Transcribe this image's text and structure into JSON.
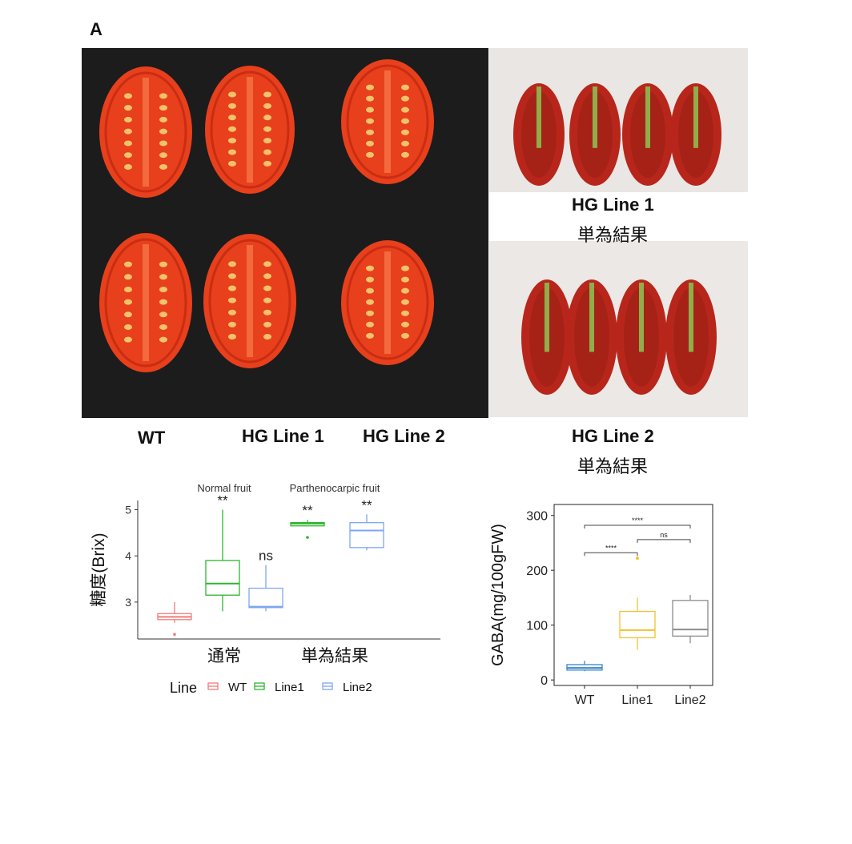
{
  "panel_letter": "A",
  "photo_labels": {
    "wt": "WT",
    "hg_line1": "HG Line 1",
    "hg_line2": "HG Line 2",
    "right_top_title": "HG Line 1",
    "right_top_sub": "単為結果",
    "right_bottom_title": "HG Line 2",
    "right_bottom_sub": "単為結果"
  },
  "colors": {
    "tomato": "#e8401c",
    "tomato_dark": "#c92d12",
    "seed": "#f2c36b",
    "wt": "#f07d79",
    "line1": "#2fb52f",
    "line2": "#7ea7f0",
    "gaba_wt": "#3a86c8",
    "gaba_line1": "#f1c232",
    "gaba_line2": "#8c8c8c"
  },
  "chart_data": [
    {
      "type": "box",
      "ylabel": "糖度(Brix)",
      "xlabel": "",
      "ylim": [
        2.2,
        5.2
      ],
      "yticks": [
        3,
        4,
        5
      ],
      "group_labels_top": [
        "Normal fruit",
        "Parthenocarpic fruit"
      ],
      "categories": [
        "通常",
        "単為結果"
      ],
      "legend_title": "Line",
      "legend_position": "bottom",
      "series": [
        {
          "name": "WT",
          "color_key": "wt",
          "boxes": [
            {
              "category": "通常",
              "min": 2.55,
              "q1": 2.62,
              "median": 2.68,
              "q3": 2.75,
              "max": 3.0,
              "outliers": [
                2.3
              ],
              "sig": ""
            }
          ]
        },
        {
          "name": "Line1",
          "color_key": "line1",
          "boxes": [
            {
              "category": "通常",
              "min": 2.8,
              "q1": 3.15,
              "median": 3.4,
              "q3": 3.9,
              "max": 5.0,
              "outliers": [],
              "sig": "**"
            },
            {
              "category": "単為結果",
              "min": 4.65,
              "q1": 4.65,
              "median": 4.7,
              "q3": 4.72,
              "max": 4.78,
              "outliers": [
                4.4
              ],
              "sig": "**"
            }
          ]
        },
        {
          "name": "Line2",
          "color_key": "line2",
          "boxes": [
            {
              "category": "通常",
              "min": 2.8,
              "q1": 2.88,
              "median": 2.9,
              "q3": 3.3,
              "max": 3.8,
              "outliers": [],
              "sig": "ns"
            },
            {
              "category": "単為結果",
              "min": 4.12,
              "q1": 4.18,
              "median": 4.55,
              "q3": 4.72,
              "max": 4.9,
              "outliers": [],
              "sig": "**"
            }
          ]
        }
      ]
    },
    {
      "type": "box",
      "ylabel": "GABA(mg/100gFW)",
      "xlabel": "",
      "ylim": [
        -10,
        320
      ],
      "yticks": [
        0,
        100,
        200,
        300
      ],
      "categories": [
        "WT",
        "Line1",
        "Line2"
      ],
      "series": [
        {
          "name": "WT",
          "color_key": "gaba_wt",
          "min": 16,
          "q1": 18,
          "median": 22,
          "q3": 28,
          "max": 35,
          "outliers": []
        },
        {
          "name": "Line1",
          "color_key": "gaba_line1",
          "min": 55,
          "q1": 77,
          "median": 91,
          "q3": 125,
          "max": 150,
          "outliers": [
            222
          ]
        },
        {
          "name": "Line2",
          "color_key": "gaba_line2",
          "min": 67,
          "q1": 80,
          "median": 92,
          "q3": 145,
          "max": 155,
          "outliers": []
        }
      ],
      "comparisons": [
        {
          "from": "WT",
          "to": "Line2",
          "label": "****",
          "y": 282
        },
        {
          "from": "WT",
          "to": "Line1",
          "label": "****",
          "y": 232
        },
        {
          "from": "Line1",
          "to": "Line2",
          "label": "ns",
          "y": 256
        }
      ]
    }
  ]
}
